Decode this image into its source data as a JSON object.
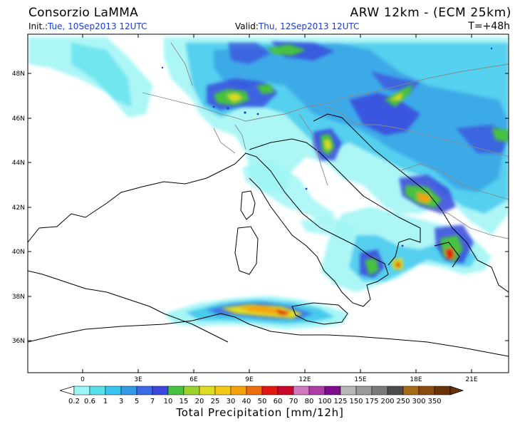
{
  "header": {
    "organization": "Consorzio LaMMA",
    "model": "ARW 12km - (ECM 25km)",
    "init_label": "Init.:",
    "init_value": "Tue, 10Sep2013 12UTC",
    "valid_label": "Valid:",
    "valid_value": "Thu, 12Sep2013 12UTC",
    "lead_time": "T=+48h"
  },
  "axes": {
    "lon_ticks": [
      "0",
      "3E",
      "6E",
      "9E",
      "12E",
      "15E",
      "18E",
      "21E"
    ],
    "lat_ticks": [
      "48N",
      "46N",
      "44N",
      "42N",
      "40N",
      "38N",
      "36N"
    ]
  },
  "colorbar": {
    "title": "Total Precipitation [mm/12h]",
    "levels": [
      "0.2",
      "0.6",
      "1",
      "3",
      "5",
      "7",
      "10",
      "15",
      "20",
      "25",
      "30",
      "40",
      "50",
      "60",
      "70",
      "80",
      "100",
      "125",
      "150",
      "175",
      "200",
      "250",
      "300",
      "350"
    ],
    "colors": [
      "#9df5f5",
      "#5ae0ec",
      "#38c4ec",
      "#339ae6",
      "#3c6be6",
      "#3a48dc",
      "#46c240",
      "#9ad52e",
      "#dedc22",
      "#f4ca14",
      "#f4a20c",
      "#ec6e0c",
      "#e01a10",
      "#c8082a",
      "#d078c0",
      "#b03ca8",
      "#7c0c8c",
      "#b8b8b8",
      "#9a9a9a",
      "#7a7a7a",
      "#4c4c4c",
      "#a66a18",
      "#8a4a10",
      "#6a3208"
    ]
  },
  "map_colors": {
    "land_outline": "#000000",
    "borders": "#888888",
    "frame": "#000000",
    "lakes": "#1a3bd6"
  }
}
